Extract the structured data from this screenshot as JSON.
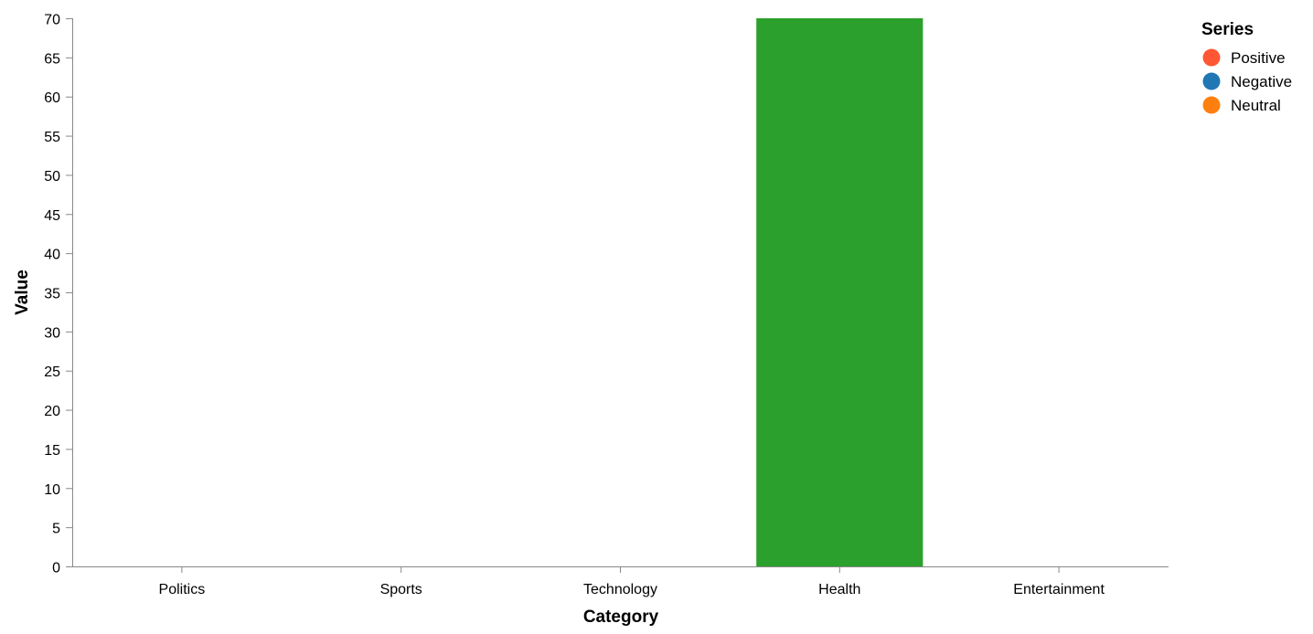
{
  "chart_data": {
    "type": "bar",
    "stacked": true,
    "categories": [
      "Politics",
      "Sports",
      "Technology",
      "Health",
      "Entertainment"
    ],
    "series": [
      {
        "name": "Positive",
        "color": "#ff5733",
        "values": [
          0,
          0,
          0,
          0,
          0
        ]
      },
      {
        "name": "Negative",
        "color": "#1f77b4",
        "values": [
          0,
          0,
          0,
          0,
          0
        ]
      },
      {
        "name": "Neutral",
        "color": "#ff7f0e",
        "values": [
          0,
          0,
          0,
          0,
          0
        ]
      },
      {
        "color": "#2ca02c",
        "values": [
          0,
          0,
          0,
          70,
          0
        ]
      }
    ],
    "xlabel": "Category",
    "ylabel": "Value",
    "ylim": [
      0,
      70
    ],
    "yticks": [
      0,
      5,
      10,
      15,
      20,
      25,
      30,
      35,
      40,
      45,
      50,
      55,
      60,
      65,
      70
    ],
    "grid": false,
    "legend": {
      "title": "Series",
      "placement": "top-right",
      "entries": [
        "Positive",
        "Negative",
        "Neutral"
      ]
    }
  }
}
